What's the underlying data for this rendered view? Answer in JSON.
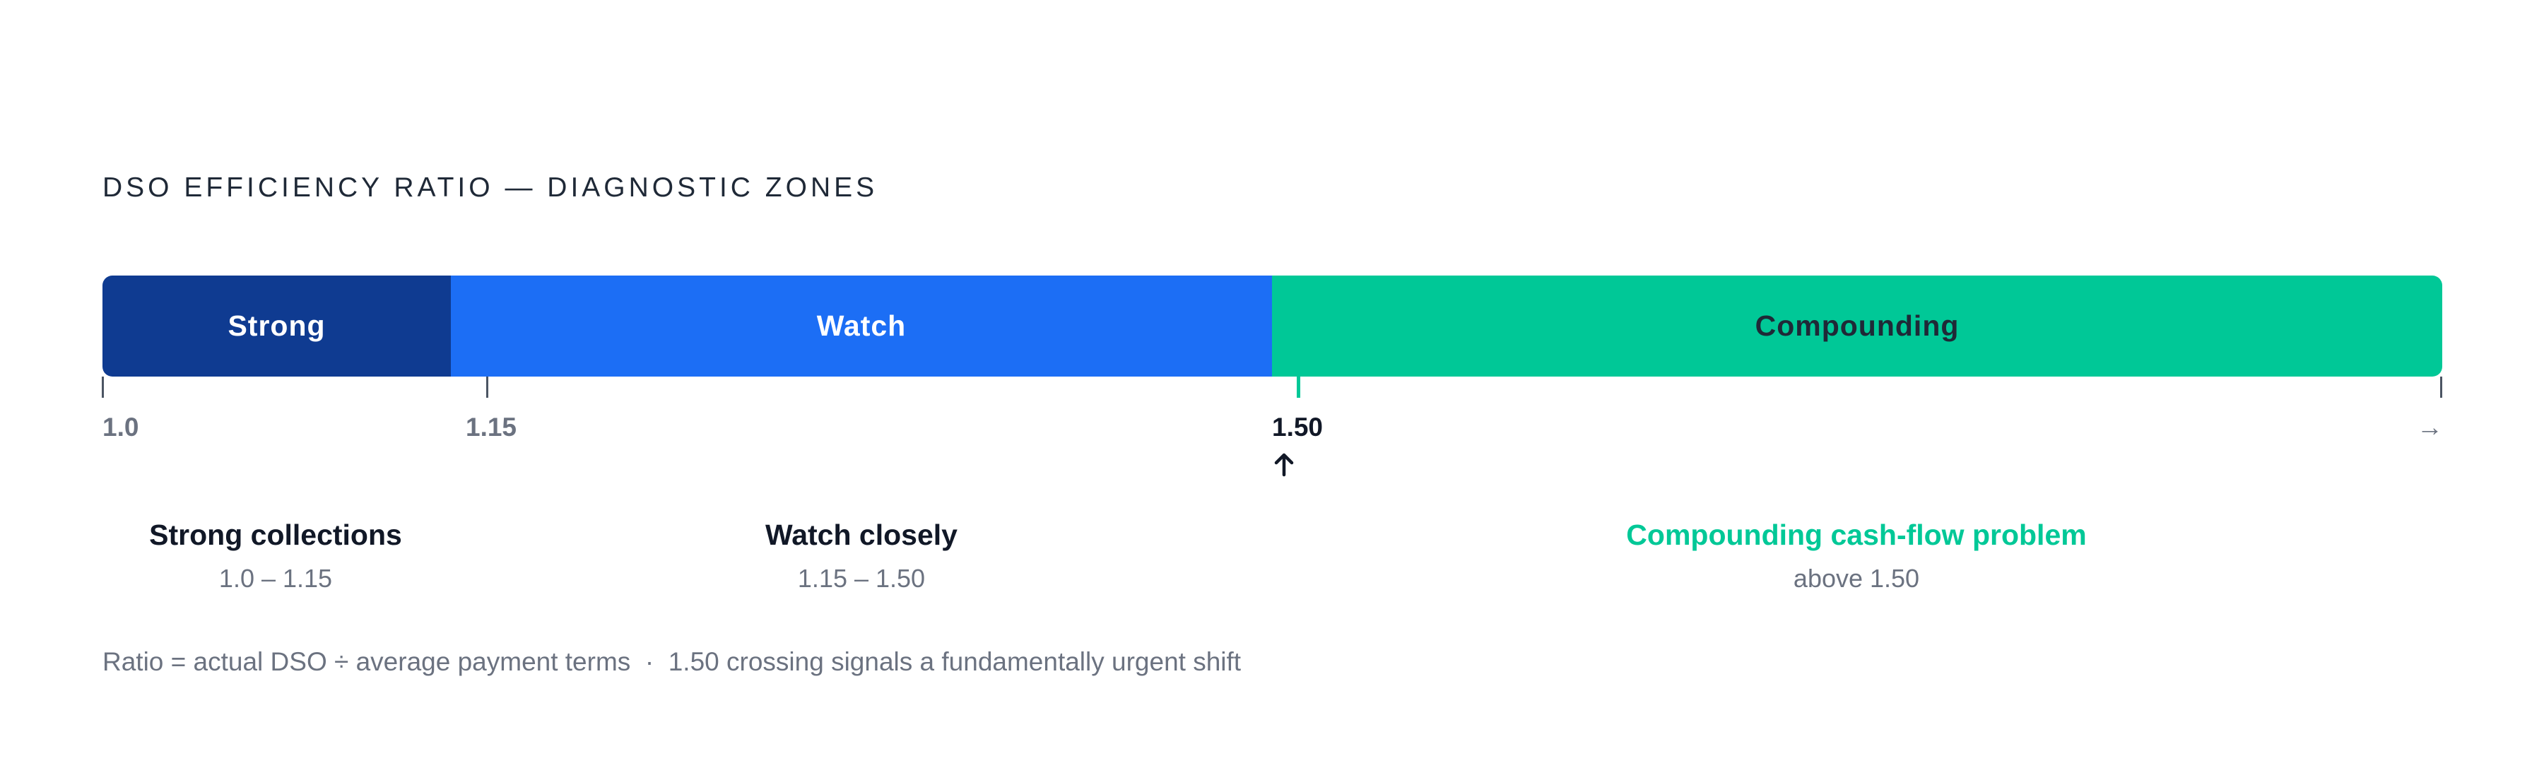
{
  "title": "DSO EFFICIENCY RATIO — DIAGNOSTIC ZONES",
  "zones": [
    {
      "label": "Strong",
      "name": "Strong collections",
      "range": "1.0 – 1.15"
    },
    {
      "label": "Watch",
      "name": "Watch closely",
      "range": "1.15 – 1.50"
    },
    {
      "label": "Compounding",
      "name": "Compounding cash-flow problem",
      "range": "above 1.50"
    }
  ],
  "ticks": [
    "1.0",
    "1.15",
    "1.50",
    "→"
  ],
  "footnote": "Ratio = actual DSO ÷ average payment terms  ·  1.50 crossing signals a fundamentally urgent shift"
}
